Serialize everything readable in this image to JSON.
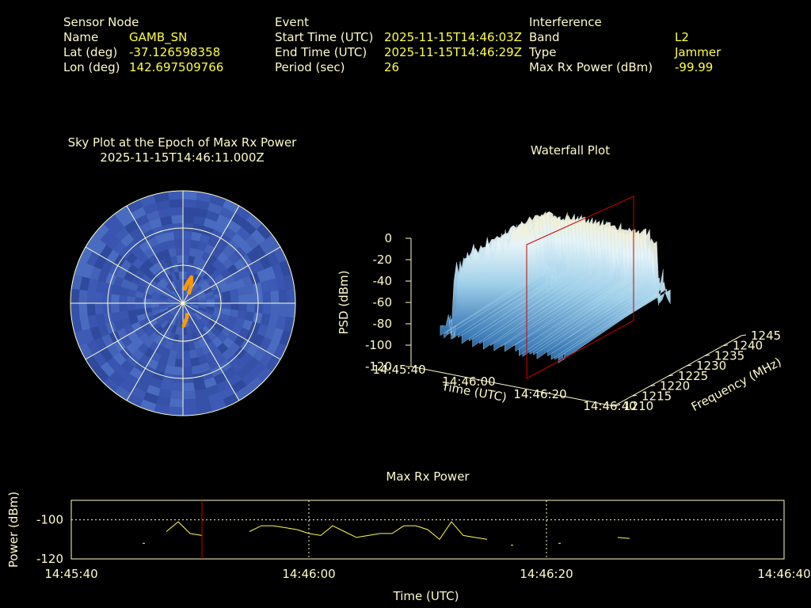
{
  "sensor": {
    "heading": "Sensor Node",
    "rows": [
      {
        "label": "Name",
        "value": "GAMB_SN"
      },
      {
        "label": "Lat (deg)",
        "value": "-37.126598358"
      },
      {
        "label": "Lon (deg)",
        "value": "142.697509766"
      }
    ]
  },
  "event": {
    "heading": "Event",
    "rows": [
      {
        "label": "Start Time (UTC)",
        "value": "2025-11-15T14:46:03Z"
      },
      {
        "label": "End Time (UTC)",
        "value": "2025-11-15T14:46:29Z"
      },
      {
        "label": "Period (sec)",
        "value": "26"
      }
    ]
  },
  "interference": {
    "heading": "Interference",
    "rows": [
      {
        "label": "Band",
        "value": "L2"
      },
      {
        "label": "Type",
        "value": "Jammer"
      },
      {
        "label": "Max Rx Power (dBm)",
        "value": "-99.99"
      }
    ]
  },
  "colors": {
    "label": "#fffacd",
    "value": "#ffff44",
    "sky": "#3a55b0",
    "marker": "#ff9900",
    "cursor": "#cc0000",
    "trace": "#ffff44"
  },
  "chart_data": [
    {
      "type": "scatter",
      "name": "sky-plot",
      "title": "Sky Plot at the Epoch of Max Rx Power",
      "subtitle": "2025-11-15T14:46:11.000Z",
      "rings": 3,
      "points": [
        [
          8,
          0.06
        ],
        [
          10,
          0.07
        ],
        [
          12,
          0.08
        ],
        [
          14,
          0.09
        ],
        [
          16,
          0.1
        ],
        [
          18,
          0.11
        ],
        [
          20,
          0.1
        ],
        [
          22,
          0.09
        ],
        [
          24,
          0.08
        ],
        [
          26,
          0.07
        ],
        [
          28,
          0.06
        ],
        [
          30,
          0.05
        ],
        [
          160,
          0.05
        ],
        [
          165,
          0.06
        ],
        [
          170,
          0.07
        ],
        [
          175,
          0.08
        ],
        [
          178,
          0.09
        ]
      ]
    },
    {
      "type": "area",
      "name": "waterfall-plot",
      "title": "Waterfall Plot",
      "zlabel": "PSD (dBm)",
      "xlabel": "Time (UTC)",
      "ylabel": "Frequency (MHz)",
      "z_ticks": [
        "0",
        "-20",
        "-40",
        "-60",
        "-80",
        "-100",
        "-120"
      ],
      "x_ticks": [
        "14:45:40",
        "14:46:00",
        "14:46:20",
        "14:46:40"
      ],
      "y_ticks": [
        "1210",
        "1215",
        "1220",
        "1225",
        "1230",
        "1235",
        "1240",
        "1245"
      ],
      "zlim": [
        -120,
        0
      ],
      "xlim": [
        "14:45:40",
        "14:46:40"
      ],
      "ylim": [
        1210,
        1245
      ],
      "cursor_time": "14:46:11",
      "peak_psd": -25,
      "signal_band": [
        1220,
        1240
      ]
    },
    {
      "type": "line",
      "name": "max-rx-power",
      "title": "Max Rx Power",
      "xlabel": "Time (UTC)",
      "ylabel": "Power (dBm)",
      "y_ticks": [
        "-100",
        "-120"
      ],
      "x_ticks": [
        "14:45:40",
        "14:46:00",
        "14:46:20",
        "14:46:40"
      ],
      "ylim": [
        -120,
        -90
      ],
      "xlim": [
        0,
        60
      ],
      "cursor_time": 11,
      "series": [
        {
          "segments": [
            [
              [
                6,
                -112
              ],
              [
                6.2,
                -112
              ]
            ],
            [
              [
                8,
                -106
              ],
              [
                9,
                -101
              ],
              [
                10,
                -107
              ],
              [
                11,
                -108
              ]
            ],
            [
              [
                15,
                -106
              ],
              [
                16,
                -103
              ],
              [
                17,
                -103
              ],
              [
                18,
                -104
              ],
              [
                19,
                -105
              ],
              [
                20,
                -107
              ],
              [
                21,
                -108
              ],
              [
                22,
                -103
              ],
              [
                23,
                -106
              ],
              [
                24,
                -109
              ],
              [
                25,
                -108
              ],
              [
                26,
                -107
              ],
              [
                27,
                -107
              ],
              [
                28,
                -103
              ],
              [
                29,
                -103
              ],
              [
                30,
                -105
              ],
              [
                31,
                -110
              ],
              [
                32,
                -101
              ],
              [
                33,
                -108
              ],
              [
                34,
                -109
              ],
              [
                35,
                -110
              ]
            ],
            [
              [
                37,
                -113
              ],
              [
                37.2,
                -113
              ]
            ],
            [
              [
                41,
                -112
              ],
              [
                41.2,
                -112
              ]
            ],
            [
              [
                46,
                -109
              ],
              [
                47,
                -109.5
              ]
            ]
          ]
        }
      ]
    }
  ]
}
